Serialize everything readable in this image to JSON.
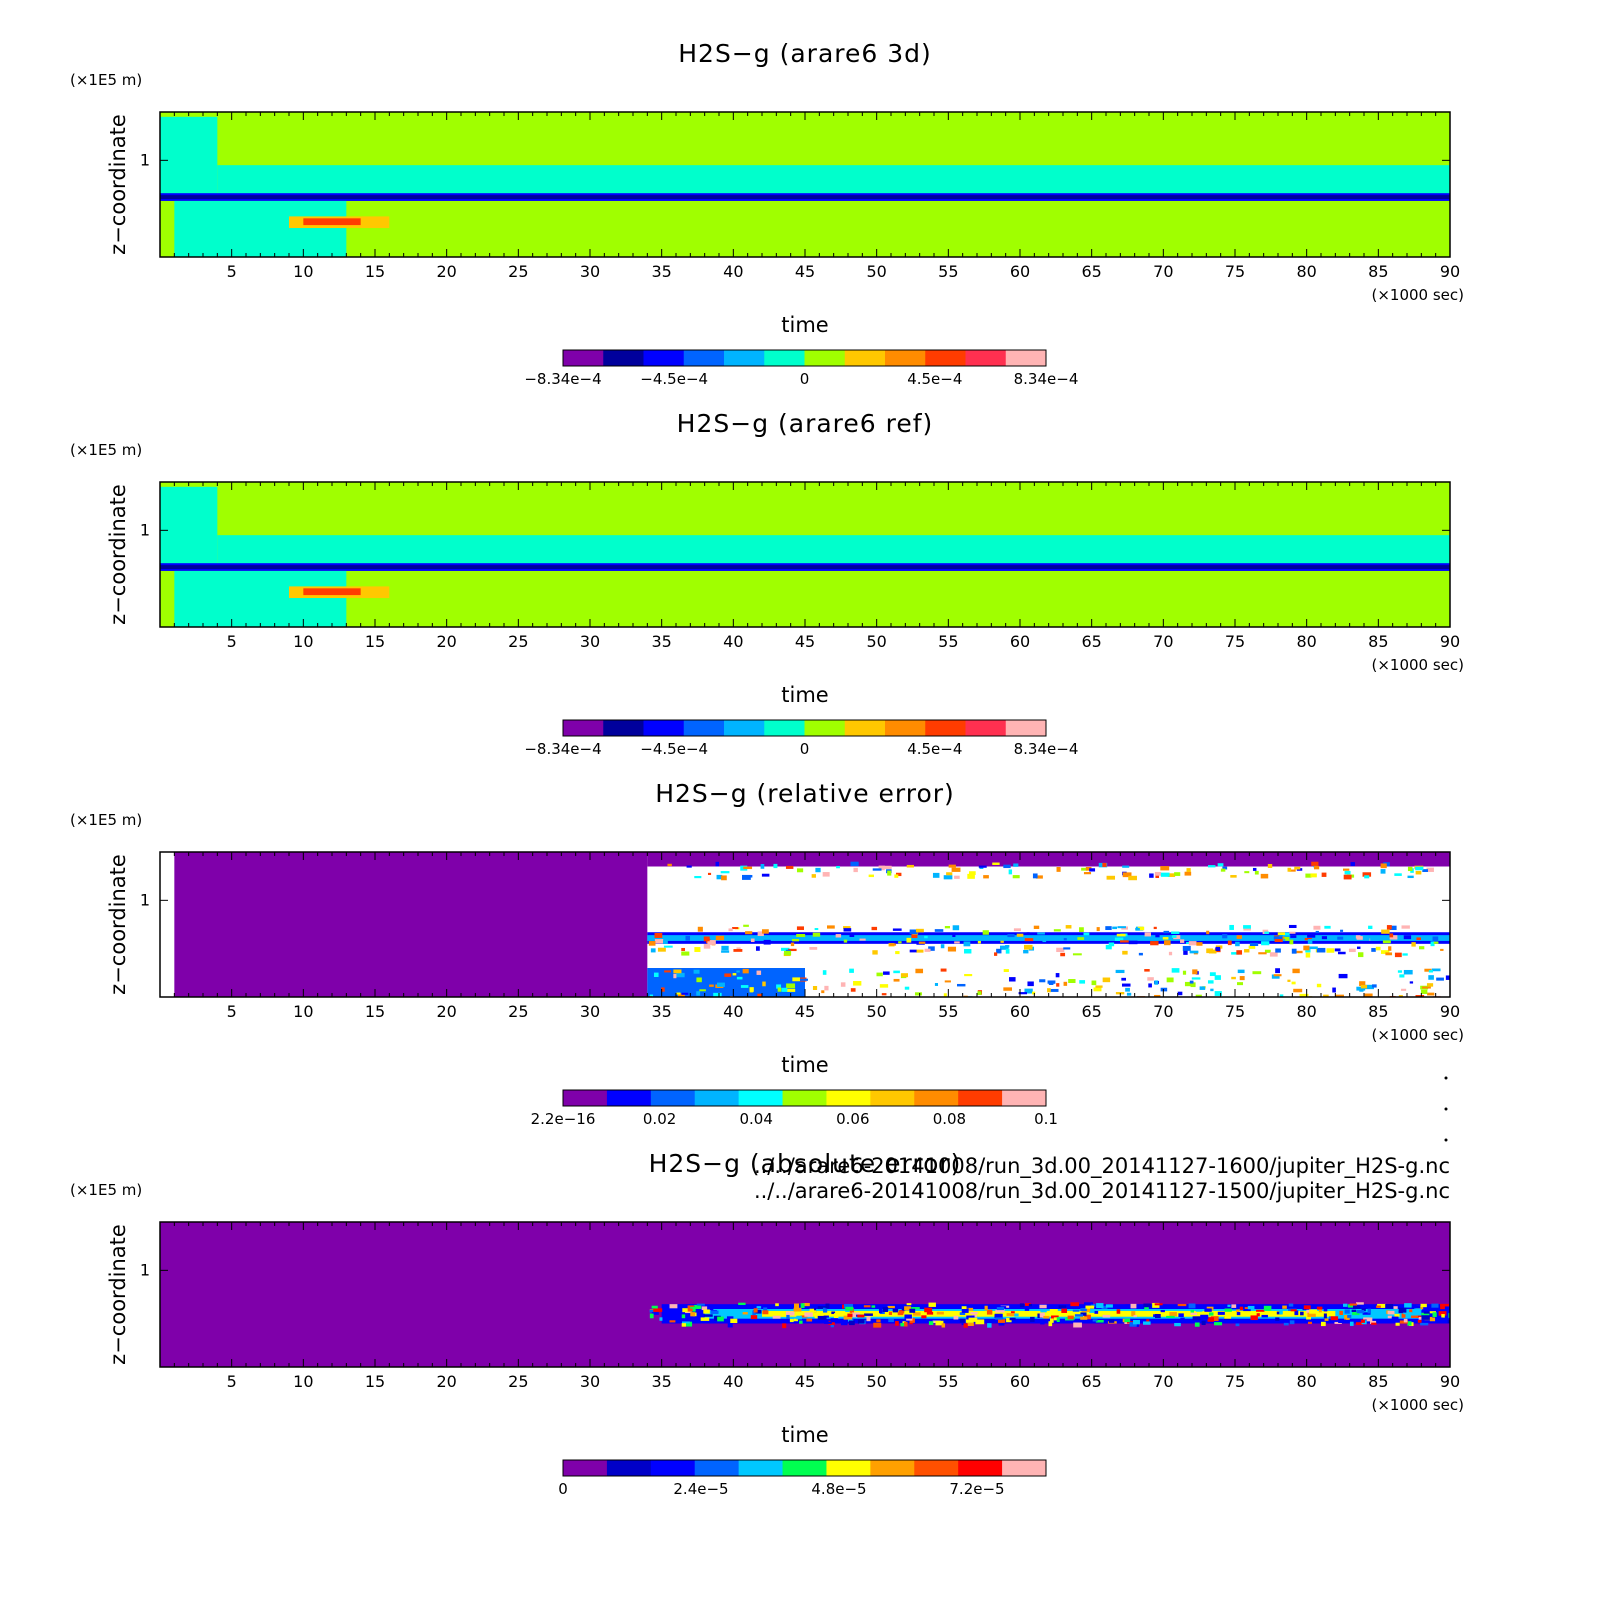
{
  "figure": {
    "file_paths": [
      "../../arare6-20141008/run_3d.00_20141127-1600/jupiter_H2S-g.nc",
      "../../arare6-20141008/run_3d.00_20141127-1500/jupiter_H2S-g.nc"
    ]
  },
  "chart_data": [
    {
      "type": "heatmap",
      "title": "H2S−g (arare6 3d)",
      "xlabel": "time",
      "x_unit": "(×1000 sec)",
      "ylabel": "z−coordinate",
      "y_unit": "(×1E5 m)",
      "xlim": [
        0,
        90
      ],
      "ylim": [
        0,
        1.5
      ],
      "xticks": [
        5,
        10,
        15,
        20,
        25,
        30,
        35,
        40,
        45,
        50,
        55,
        60,
        65,
        70,
        75,
        80,
        85,
        90
      ],
      "yticks": [
        1
      ],
      "colorbar": {
        "range": [
          -0.000834,
          0.000834
        ],
        "labels": [
          {
            "text": "−8.34e−4",
            "value": -0.000834
          },
          {
            "text": "−4.5e−4",
            "value": -0.00045
          },
          {
            "text": "0",
            "value": 0
          },
          {
            "text": "4.5e−4",
            "value": 0.00045
          },
          {
            "text": "8.34e−4",
            "value": 0.000834
          }
        ],
        "colors": [
          "#7f00aa",
          "#00009c",
          "#0000ff",
          "#0064ff",
          "#00b4ff",
          "#00ffcc",
          "#a0ff00",
          "#ffc800",
          "#ff8c00",
          "#ff3c00",
          "#ff3050",
          "#ffb4b4"
        ]
      },
      "field": {
        "background": "#a0ff00",
        "bands": [
          {
            "x": [
              0,
              4
            ],
            "z": [
              0.6,
              1.45
            ],
            "color": "#00ffcc"
          },
          {
            "x": [
              4,
              90
            ],
            "z": [
              0.6,
              0.95
            ],
            "color": "#00ffcc"
          },
          {
            "x": [
              0,
              90
            ],
            "z": [
              0.58,
              0.66
            ],
            "color": "#0000ff"
          },
          {
            "x": [
              0,
              90
            ],
            "z": [
              0.6,
              0.64
            ],
            "color": "#00009c"
          },
          {
            "x": [
              1,
              13
            ],
            "z": [
              0,
              0.58
            ],
            "color": "#00ffcc"
          },
          {
            "x": [
              9,
              16
            ],
            "z": [
              0.3,
              0.42
            ],
            "color": "#ffc800"
          },
          {
            "x": [
              10,
              14
            ],
            "z": [
              0.33,
              0.4
            ],
            "color": "#ff3c00"
          }
        ]
      }
    },
    {
      "type": "heatmap",
      "title": "H2S−g (arare6 ref)",
      "xlabel": "time",
      "x_unit": "(×1000 sec)",
      "ylabel": "z−coordinate",
      "y_unit": "(×1E5 m)",
      "xlim": [
        0,
        90
      ],
      "ylim": [
        0,
        1.5
      ],
      "xticks": [
        5,
        10,
        15,
        20,
        25,
        30,
        35,
        40,
        45,
        50,
        55,
        60,
        65,
        70,
        75,
        80,
        85,
        90
      ],
      "yticks": [
        1
      ],
      "colorbar": {
        "range": [
          -0.000834,
          0.000834
        ],
        "labels": [
          {
            "text": "−8.34e−4",
            "value": -0.000834
          },
          {
            "text": "−4.5e−4",
            "value": -0.00045
          },
          {
            "text": "0",
            "value": 0
          },
          {
            "text": "4.5e−4",
            "value": 0.00045
          },
          {
            "text": "8.34e−4",
            "value": 0.000834
          }
        ],
        "colors": [
          "#7f00aa",
          "#00009c",
          "#0000ff",
          "#0064ff",
          "#00b4ff",
          "#00ffcc",
          "#a0ff00",
          "#ffc800",
          "#ff8c00",
          "#ff3c00",
          "#ff3050",
          "#ffb4b4"
        ]
      },
      "field": {
        "background": "#a0ff00",
        "bands": [
          {
            "x": [
              0,
              4
            ],
            "z": [
              0.6,
              1.45
            ],
            "color": "#00ffcc"
          },
          {
            "x": [
              4,
              90
            ],
            "z": [
              0.6,
              0.95
            ],
            "color": "#00ffcc"
          },
          {
            "x": [
              0,
              90
            ],
            "z": [
              0.58,
              0.66
            ],
            "color": "#0000ff"
          },
          {
            "x": [
              0,
              90
            ],
            "z": [
              0.6,
              0.64
            ],
            "color": "#00009c"
          },
          {
            "x": [
              1,
              13
            ],
            "z": [
              0,
              0.58
            ],
            "color": "#00ffcc"
          },
          {
            "x": [
              9,
              16
            ],
            "z": [
              0.3,
              0.42
            ],
            "color": "#ffc800"
          },
          {
            "x": [
              10,
              14
            ],
            "z": [
              0.33,
              0.4
            ],
            "color": "#ff3c00"
          }
        ]
      }
    },
    {
      "type": "heatmap",
      "title": "H2S−g (relative error)",
      "xlabel": "time",
      "x_unit": "(×1000 sec)",
      "ylabel": "z−coordinate",
      "y_unit": "(×1E5 m)",
      "xlim": [
        0,
        90
      ],
      "ylim": [
        0,
        1.5
      ],
      "xticks": [
        5,
        10,
        15,
        20,
        25,
        30,
        35,
        40,
        45,
        50,
        55,
        60,
        65,
        70,
        75,
        80,
        85,
        90
      ],
      "yticks": [
        1
      ],
      "colorbar": {
        "range": [
          2.2e-16,
          0.1
        ],
        "labels": [
          {
            "text": "2.2e−16",
            "value": 2.2e-16
          },
          {
            "text": "0.02",
            "value": 0.02
          },
          {
            "text": "0.04",
            "value": 0.04
          },
          {
            "text": "0.06",
            "value": 0.06
          },
          {
            "text": "0.08",
            "value": 0.08
          },
          {
            "text": "0.1",
            "value": 0.1
          }
        ],
        "colors": [
          "#7f00aa",
          "#0000ff",
          "#0064ff",
          "#00b4ff",
          "#00ffff",
          "#a0ff00",
          "#ffff00",
          "#ffc800",
          "#ff8c00",
          "#ff3c00",
          "#ffb4b4"
        ]
      },
      "field": {
        "background": "#ffffff",
        "bands": [
          {
            "x": [
              1,
              34
            ],
            "z": [
              0,
              1.5
            ],
            "color": "#7f00aa"
          },
          {
            "x": [
              34,
              90
            ],
            "z": [
              1.35,
              1.5
            ],
            "color": "#7f00aa"
          },
          {
            "x": [
              34,
              90
            ],
            "z": [
              0.55,
              0.67
            ],
            "color": "#0000ff"
          },
          {
            "x": [
              34,
              90
            ],
            "z": [
              0.58,
              0.64
            ],
            "color": "#00b4ff"
          },
          {
            "x": [
              34,
              45
            ],
            "z": [
              0,
              0.3
            ],
            "color": "#0064ff"
          }
        ]
      }
    },
    {
      "type": "heatmap",
      "title": "H2S−g (absolute error)",
      "xlabel": "time",
      "x_unit": "(×1000 sec)",
      "ylabel": "z−coordinate",
      "y_unit": "(×1E5 m)",
      "xlim": [
        0,
        90
      ],
      "ylim": [
        0,
        1.5
      ],
      "xticks": [
        5,
        10,
        15,
        20,
        25,
        30,
        35,
        40,
        45,
        50,
        55,
        60,
        65,
        70,
        75,
        80,
        85,
        90
      ],
      "yticks": [
        1
      ],
      "colorbar": {
        "range": [
          0,
          8.4e-05
        ],
        "labels": [
          {
            "text": "0",
            "value": 0
          },
          {
            "text": "2.4e−5",
            "value": 2.4e-05
          },
          {
            "text": "4.8e−5",
            "value": 4.8e-05
          },
          {
            "text": "7.2e−5",
            "value": 7.2e-05
          }
        ],
        "colors": [
          "#7f00aa",
          "#0000c8",
          "#0000ff",
          "#0064ff",
          "#00c8ff",
          "#00ff50",
          "#ffff00",
          "#ffa000",
          "#ff5000",
          "#ff0000",
          "#ffb4b4"
        ]
      },
      "field": {
        "background": "#7f00aa",
        "bands": [
          {
            "x": [
              35,
              90
            ],
            "z": [
              0.45,
              0.65
            ],
            "color": "#0000ff"
          },
          {
            "x": [
              38,
              88
            ],
            "z": [
              0.5,
              0.6
            ],
            "color": "#00c8ff"
          },
          {
            "x": [
              42,
              82
            ],
            "z": [
              0.52,
              0.58
            ],
            "color": "#ffff00"
          }
        ]
      }
    }
  ]
}
